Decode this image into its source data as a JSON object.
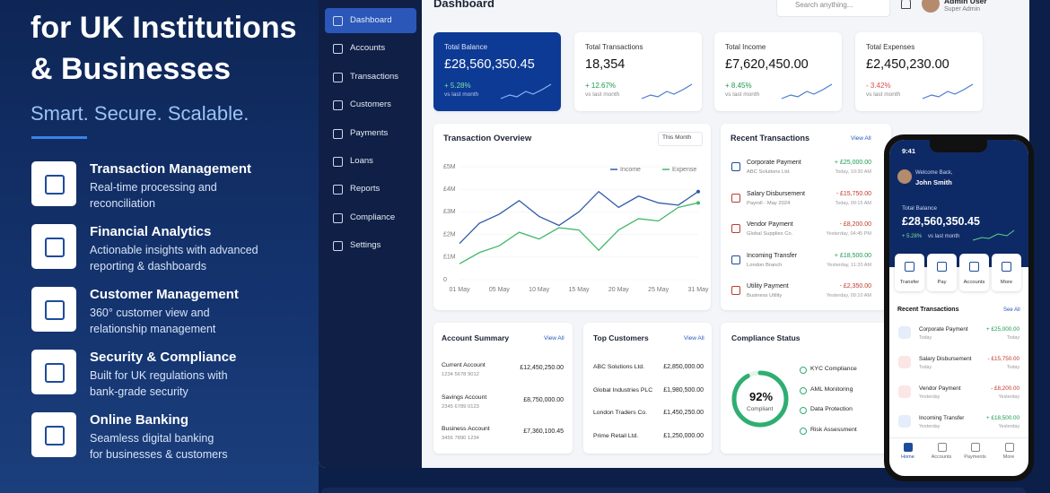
{
  "hero": {
    "title": [
      "for UK Institutions",
      "& Businesses"
    ],
    "tagline": "Smart. Secure. Scalable.",
    "features": [
      {
        "title": "Transaction Management",
        "description": [
          "Real-time processing and",
          "reconciliation"
        ]
      },
      {
        "title": "Financial Analytics",
        "description": [
          "Actionable insights with advanced",
          "reporting & dashboards"
        ]
      },
      {
        "title": "Customer Management",
        "description": [
          "360° customer view and",
          "relationship management"
        ]
      },
      {
        "title": "Security & Compliance",
        "description": [
          "Built for UK regulations with",
          "bank-grade security"
        ]
      },
      {
        "title": "Online Banking",
        "description": [
          "Seamless digital banking",
          "for businesses & customers"
        ]
      }
    ]
  },
  "sidebar": [
    "Dashboard",
    "Accounts",
    "Transactions",
    "Customers",
    "Payments",
    "Loans",
    "Reports",
    "Compliance",
    "Settings"
  ],
  "header": {
    "title": "Dashboard",
    "search": "Search anything...",
    "user": "Admin User",
    "role": "Super Admin"
  },
  "stats": [
    {
      "label": "Total Balance",
      "value": "£28,560,350.45",
      "change": "+ 5.28%",
      "note": "vs last month"
    },
    {
      "label": "Total Transactions",
      "value": "18,354",
      "change": "+ 12.67%",
      "note": "vs last month"
    },
    {
      "label": "Total Income",
      "value": "£7,620,450.00",
      "change": "+ 8.45%",
      "note": "vs last month"
    },
    {
      "label": "Total Expenses",
      "value": "£2,450,230.00",
      "change": "- 3.42%",
      "note": "vs last month"
    }
  ],
  "overview_filter": "This Month",
  "chart_data": {
    "type": "line",
    "title": "Transaction Overview",
    "categories": [
      "01 May",
      null,
      "05 May",
      null,
      "10 May",
      null,
      "15 May",
      null,
      "20 May",
      null,
      "25 May",
      null,
      "31 May"
    ],
    "series": [
      {
        "name": "Income",
        "color": "#2f5aa8",
        "values": [
          1.6,
          2.5,
          2.9,
          3.5,
          2.8,
          2.4,
          3.0,
          3.9,
          3.2,
          3.7,
          3.4,
          3.3,
          3.9
        ]
      },
      {
        "name": "Expense",
        "color": "#3fb86a",
        "values": [
          0.7,
          1.2,
          1.5,
          2.1,
          1.8,
          2.3,
          2.2,
          1.3,
          2.2,
          2.7,
          2.6,
          3.2,
          3.4
        ]
      }
    ],
    "ylim": [
      0,
      5
    ],
    "yticks": [
      0,
      {
        "value": 1,
        "label": "£1M"
      },
      {
        "value": 2,
        "label": "£2M"
      },
      {
        "value": 3,
        "label": "£3M"
      },
      {
        "value": 4,
        "label": "£4M"
      },
      {
        "value": 5,
        "label": "£5M"
      }
    ]
  },
  "recent": {
    "title": "Recent Transactions",
    "link": "View All",
    "items": [
      {
        "name": "Corporate Payment",
        "party": "ABC Solutions Ltd.",
        "amount": "+ £25,000.00",
        "time": "Today, 10:30 AM"
      },
      {
        "name": "Salary Disbursement",
        "party": "Payroll - May 2024",
        "amount": "- £15,750.00",
        "time": "Today, 09:15 AM"
      },
      {
        "name": "Vendor Payment",
        "party": "Global Supplies Co.",
        "amount": "- £8,200.00",
        "time": "Yesterday, 04:45 PM"
      },
      {
        "name": "Incoming Transfer",
        "party": "London Branch",
        "amount": "+ £18,500.00",
        "time": "Yesterday, 11:20 AM"
      },
      {
        "name": "Utility Payment",
        "party": "Business Utility",
        "amount": "- £2,350.00",
        "time": "Yesterday, 09:10 AM"
      }
    ]
  },
  "accounts": {
    "title": "Account Summary",
    "link": "View All",
    "items": [
      {
        "name": "Current Account",
        "number": "1234 5678 9012",
        "amount": "£12,450,250.00"
      },
      {
        "name": "Savings Account",
        "number": "2345 6789 0123",
        "amount": "£8,750,000.00"
      },
      {
        "name": "Business Account",
        "number": "3456 7890 1234",
        "amount": "£7,360,100.45"
      }
    ]
  },
  "customers": {
    "title": "Top Customers",
    "link": "View All",
    "items": [
      {
        "name": "ABC Solutions Ltd.",
        "amount": "£2,850,000.00"
      },
      {
        "name": "Global Industries PLC",
        "amount": "£1,980,500.00"
      },
      {
        "name": "London Traders Co.",
        "amount": "£1,450,250.00"
      },
      {
        "name": "Prime Retail Ltd.",
        "amount": "£1,250,000.00"
      }
    ]
  },
  "compliance": {
    "title": "Compliance Status",
    "score": 92,
    "score_label": "92%",
    "status": "Compliant",
    "items": [
      "KYC Compliance",
      "AML Monitoring",
      "Data Protection",
      "Risk Assessment"
    ]
  },
  "phone": {
    "time": "9:41",
    "greeting": "Welcome Back,",
    "name": "John Smith",
    "balance_label": "Total Balance",
    "balance": "£28,560,350.45",
    "change": "+ 5.28%",
    "note": "vs last month",
    "actions": [
      "Transfer",
      "Pay",
      "Accounts",
      "More"
    ],
    "recent_title": "Recent Transactions",
    "see_all": "See All",
    "transactions": [
      {
        "name": "Corporate Payment",
        "when": "Today",
        "amount": "+ £25,000.00",
        "date": "Today"
      },
      {
        "name": "Salary Disbursement",
        "when": "Today",
        "amount": "- £15,750.00",
        "date": "Today"
      },
      {
        "name": "Vendor Payment",
        "when": "Yesterday",
        "amount": "- £8,200.00",
        "date": "Yesterday"
      },
      {
        "name": "Incoming Transfer",
        "when": "Yesterday",
        "amount": "+ £18,500.00",
        "date": "Yesterday"
      }
    ],
    "nav": [
      "Home",
      "Accounts",
      "Payments",
      "More"
    ]
  }
}
